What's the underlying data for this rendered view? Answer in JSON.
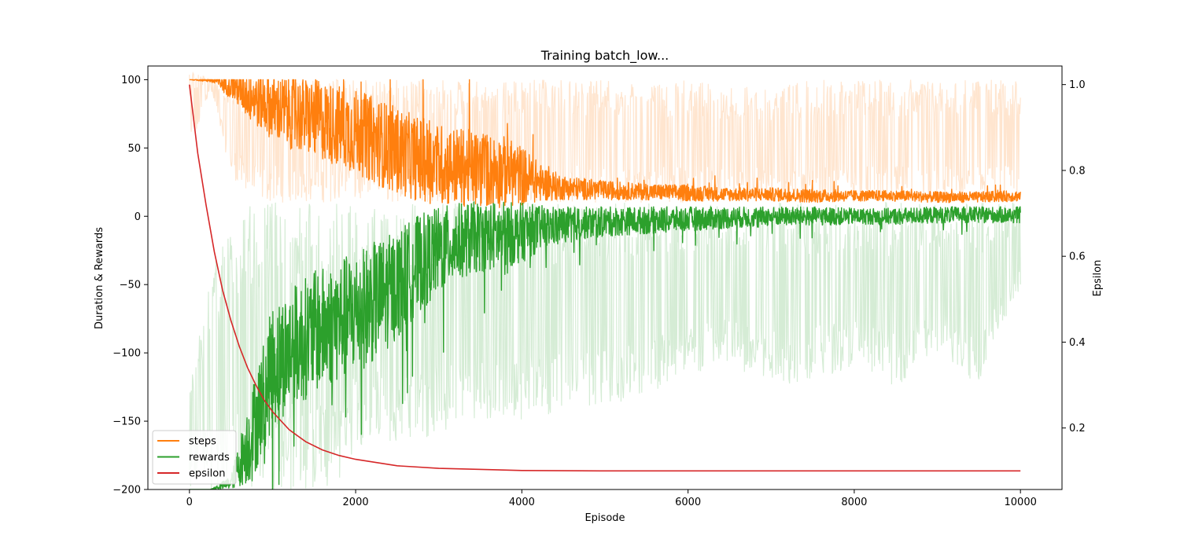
{
  "chart_data": {
    "type": "line",
    "title": "Training batch_low...",
    "xlabel": "Episode",
    "ylabel_left": "Duration & Rewards",
    "ylabel_right": "Epsilon",
    "xlim": [
      -500,
      10500
    ],
    "ylim_left": [
      -200,
      110
    ],
    "ylim_right": [
      0.0567,
      1.0433
    ],
    "xticks": [
      0,
      2000,
      4000,
      6000,
      8000,
      10000
    ],
    "yticks_left": [
      100,
      50,
      0,
      -50,
      -100,
      -150,
      -200
    ],
    "yticks_left_labels": [
      "100",
      "50",
      "0",
      "−50",
      "−100",
      "−150",
      "−200"
    ],
    "yticks_right": [
      1.0,
      0.8,
      0.6,
      0.4,
      0.2
    ],
    "yticks_right_labels": [
      "1.0",
      "0.8",
      "0.6",
      "0.4",
      "0.2"
    ],
    "grid": false,
    "legend_position": "lower-left",
    "series": [
      {
        "name": "steps",
        "axis": "left",
        "color": "#ff7f0e",
        "x": [
          0,
          250,
          500,
          750,
          1000,
          1250,
          1500,
          1750,
          2000,
          2250,
          2500,
          2750,
          3000,
          3250,
          3500,
          3750,
          4000,
          4250,
          4500,
          5000,
          5500,
          6000,
          6500,
          7000,
          7500,
          8000,
          8500,
          9000,
          9500,
          10000
        ],
        "smoothed": [
          100,
          100,
          96,
          88,
          80,
          75,
          72,
          67,
          62,
          55,
          48,
          42,
          38,
          36,
          34,
          33,
          30,
          24,
          21,
          19,
          18,
          17,
          16,
          16,
          15,
          15,
          15,
          14,
          14,
          15
        ],
        "spread": [
          0,
          2,
          10,
          20,
          24,
          27,
          29,
          30,
          31,
          32,
          32,
          31,
          30,
          29,
          28,
          27,
          22,
          13,
          9,
          7,
          6,
          6,
          5,
          5,
          5,
          4,
          4,
          4,
          4,
          4
        ],
        "raw_low": [
          40,
          95,
          30,
          12,
          10,
          10,
          10,
          10,
          10,
          10,
          10,
          10,
          10,
          10,
          10,
          10,
          10,
          10,
          10,
          10,
          10,
          10,
          10,
          10,
          10,
          10,
          10,
          10,
          10,
          10
        ],
        "raw_high": [
          110,
          100,
          100,
          100,
          100,
          100,
          100,
          100,
          100,
          100,
          100,
          100,
          100,
          100,
          100,
          100,
          100,
          100,
          100,
          100,
          95,
          100,
          95,
          95,
          100,
          100,
          100,
          100,
          100,
          100
        ]
      },
      {
        "name": "rewards",
        "axis": "left",
        "color": "#2ca02c",
        "x": [
          0,
          250,
          500,
          750,
          1000,
          1250,
          1500,
          1750,
          2000,
          2250,
          2500,
          2750,
          3000,
          3250,
          3500,
          3750,
          4000,
          4250,
          4500,
          5000,
          5500,
          6000,
          6500,
          7000,
          7500,
          8000,
          8500,
          9000,
          9500,
          10000
        ],
        "smoothed": [
          -200,
          -200,
          -195,
          -160,
          -110,
          -95,
          -85,
          -78,
          -70,
          -62,
          -50,
          -35,
          -25,
          -18,
          -15,
          -14,
          -12,
          -8,
          -6,
          -4,
          -3,
          -2,
          -1,
          0,
          0,
          0,
          0,
          1,
          1,
          1
        ],
        "spread": [
          0,
          0,
          5,
          35,
          45,
          45,
          45,
          45,
          45,
          44,
          40,
          36,
          32,
          28,
          26,
          25,
          22,
          16,
          13,
          11,
          10,
          9,
          8,
          7,
          7,
          6,
          6,
          6,
          6,
          6
        ],
        "raw_low": [
          -200,
          -200,
          -200,
          -200,
          -200,
          -200,
          -200,
          -200,
          -170,
          -165,
          -165,
          -165,
          -160,
          -155,
          -150,
          -150,
          -150,
          -145,
          -145,
          -140,
          -130,
          -120,
          -110,
          -125,
          -120,
          -110,
          -125,
          -100,
          -125,
          -55
        ],
        "raw_high": [
          -120,
          -40,
          0,
          10,
          10,
          10,
          10,
          10,
          10,
          10,
          10,
          10,
          10,
          10,
          10,
          10,
          10,
          10,
          10,
          10,
          10,
          10,
          10,
          10,
          10,
          10,
          10,
          10,
          10,
          10
        ]
      },
      {
        "name": "epsilon",
        "axis": "right",
        "color": "#d62728",
        "x": [
          0,
          100,
          200,
          300,
          400,
          500,
          600,
          700,
          800,
          900,
          1000,
          1200,
          1400,
          1600,
          1800,
          2000,
          2500,
          3000,
          4000,
          5000,
          6000,
          7000,
          8000,
          9000,
          10000
        ],
        "y": [
          1.0,
          0.84,
          0.72,
          0.61,
          0.52,
          0.45,
          0.39,
          0.34,
          0.3,
          0.265,
          0.238,
          0.196,
          0.168,
          0.149,
          0.136,
          0.127,
          0.112,
          0.106,
          0.101,
          0.1,
          0.1,
          0.1,
          0.1,
          0.1,
          0.1
        ]
      }
    ]
  }
}
